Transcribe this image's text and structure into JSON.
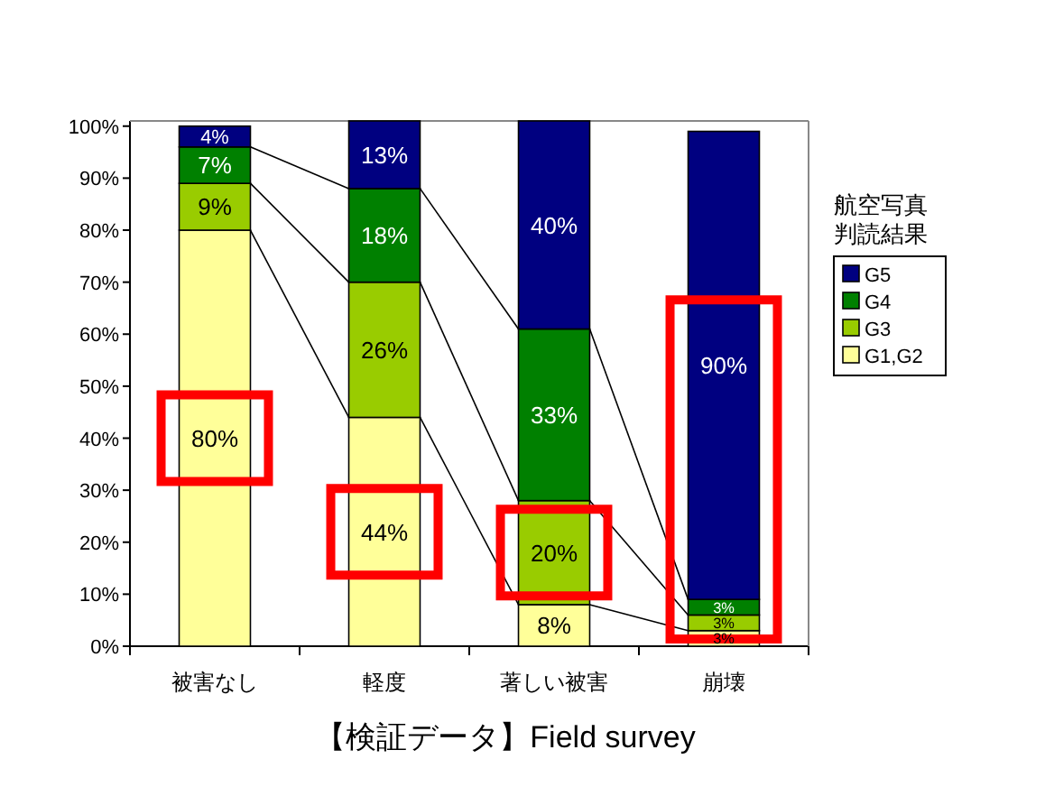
{
  "chart_data": {
    "type": "bar",
    "stacked": true,
    "categories": [
      "被害なし",
      "軽度",
      "著しい被害",
      "崩壊"
    ],
    "series": [
      {
        "name": "G1,G2",
        "color": "#ffff99",
        "values": [
          80,
          44,
          8,
          3
        ],
        "value_labels": [
          "80%",
          "44%",
          "8%",
          "3%"
        ]
      },
      {
        "name": "G3",
        "color": "#99cc00",
        "values": [
          9,
          26,
          20,
          3
        ],
        "value_labels": [
          "9%",
          "26%",
          "20%",
          "3%"
        ]
      },
      {
        "name": "G4",
        "color": "#008000",
        "values": [
          7,
          18,
          33,
          3
        ],
        "value_labels": [
          "7%",
          "18%",
          "33%",
          "3%"
        ]
      },
      {
        "name": "G5",
        "color": "#000080",
        "values": [
          4,
          13,
          40,
          90
        ],
        "value_labels": [
          "4%",
          "13%",
          "40%",
          "90%"
        ]
      }
    ],
    "ylim": [
      0,
      101
    ],
    "yticks": [
      {
        "value": 0,
        "label": "0%"
      },
      {
        "value": 10,
        "label": "10%"
      },
      {
        "value": 20,
        "label": "20%"
      },
      {
        "value": 30,
        "label": "30%"
      },
      {
        "value": 40,
        "label": "40%"
      },
      {
        "value": 50,
        "label": "50%"
      },
      {
        "value": 60,
        "label": "60%"
      },
      {
        "value": 70,
        "label": "70%"
      },
      {
        "value": 80,
        "label": "80%"
      },
      {
        "value": 90,
        "label": "90%"
      },
      {
        "value": 100,
        "label": "100%"
      }
    ],
    "xlabel": "【検証データ】Field survey",
    "legend_title": "航空写真判読結果",
    "legend": "right"
  }
}
